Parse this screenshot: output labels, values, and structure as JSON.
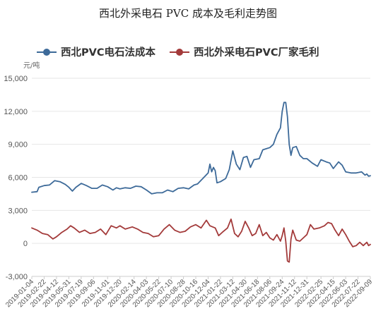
{
  "chart_data": {
    "type": "line",
    "title": "西北外采电石 PVC 成本及毛利走势图",
    "y_unit": "元/吨",
    "ylim": [
      -3000,
      15000
    ],
    "y_ticks": [
      "-3,000",
      "0",
      "3,000",
      "6,000",
      "9,000",
      "12,000",
      "15,000"
    ],
    "y_tick_values": [
      -3000,
      0,
      3000,
      6000,
      9000,
      12000,
      15000
    ],
    "grid": true,
    "legend_position": "top",
    "x_start": "2019-01-04",
    "x_end": "2022-09-09",
    "x_ticks": [
      "2019-01-04",
      "2019-02-22",
      "2019-04-12",
      "2019-05-31",
      "2019-07-19",
      "2019-09-06",
      "2019-11-01",
      "2019-12-20",
      "2020-02-14",
      "2020-04-03",
      "2020-05-22",
      "2020-07-10",
      "2020-08-28",
      "2020-10-16",
      "2020-12-04",
      "2021-01-22",
      "2021-03-12",
      "2021-04-30",
      "2021-06-18",
      "2021-08-06",
      "2021-09-24",
      "2021-11-12",
      "2021-12-31",
      "2022-02-25",
      "2022-04-15",
      "2022-06-03",
      "2022-07-22",
      "2022-09-09"
    ],
    "series": [
      {
        "name": "西北PVC电石法成本",
        "color": "#3d6a99",
        "points": [
          [
            "2019-01-04",
            4650
          ],
          [
            "2019-01-25",
            4700
          ],
          [
            "2019-02-01",
            5100
          ],
          [
            "2019-02-22",
            5250
          ],
          [
            "2019-03-15",
            5300
          ],
          [
            "2019-04-05",
            5700
          ],
          [
            "2019-04-26",
            5600
          ],
          [
            "2019-05-17",
            5350
          ],
          [
            "2019-05-31",
            5100
          ],
          [
            "2019-06-14",
            4750
          ],
          [
            "2019-06-28",
            5100
          ],
          [
            "2019-07-19",
            5450
          ],
          [
            "2019-08-09",
            5250
          ],
          [
            "2019-08-30",
            5000
          ],
          [
            "2019-09-20",
            5000
          ],
          [
            "2019-10-11",
            5300
          ],
          [
            "2019-11-01",
            5150
          ],
          [
            "2019-11-22",
            4850
          ],
          [
            "2019-12-06",
            5050
          ],
          [
            "2019-12-20",
            4950
          ],
          [
            "2020-01-10",
            5050
          ],
          [
            "2020-01-31",
            5000
          ],
          [
            "2020-02-21",
            5200
          ],
          [
            "2020-03-13",
            5150
          ],
          [
            "2020-04-03",
            4850
          ],
          [
            "2020-04-24",
            4500
          ],
          [
            "2020-05-15",
            4600
          ],
          [
            "2020-06-05",
            4600
          ],
          [
            "2020-06-26",
            4850
          ],
          [
            "2020-07-17",
            4700
          ],
          [
            "2020-08-07",
            5000
          ],
          [
            "2020-08-28",
            5050
          ],
          [
            "2020-09-18",
            4950
          ],
          [
            "2020-10-09",
            5300
          ],
          [
            "2020-10-23",
            5400
          ],
          [
            "2020-11-13",
            5900
          ],
          [
            "2020-12-04",
            6400
          ],
          [
            "2020-12-11",
            7200
          ],
          [
            "2020-12-18",
            6500
          ],
          [
            "2020-12-25",
            6900
          ],
          [
            "2021-01-01",
            6600
          ],
          [
            "2021-01-08",
            5500
          ],
          [
            "2021-01-22",
            5600
          ],
          [
            "2021-02-12",
            5900
          ],
          [
            "2021-02-26",
            6700
          ],
          [
            "2021-03-12",
            8400
          ],
          [
            "2021-03-26",
            7200
          ],
          [
            "2021-04-09",
            6700
          ],
          [
            "2021-04-23",
            7800
          ],
          [
            "2021-05-07",
            7900
          ],
          [
            "2021-05-21",
            6900
          ],
          [
            "2021-06-04",
            7600
          ],
          [
            "2021-06-25",
            7700
          ],
          [
            "2021-07-09",
            8500
          ],
          [
            "2021-07-23",
            8600
          ],
          [
            "2021-08-06",
            8700
          ],
          [
            "2021-08-20",
            9000
          ],
          [
            "2021-09-03",
            9900
          ],
          [
            "2021-09-17",
            10500
          ],
          [
            "2021-09-24",
            12000
          ],
          [
            "2021-10-01",
            12800
          ],
          [
            "2021-10-08",
            12800
          ],
          [
            "2021-10-15",
            11500
          ],
          [
            "2021-10-22",
            9000
          ],
          [
            "2021-10-29",
            8000
          ],
          [
            "2021-11-05",
            8700
          ],
          [
            "2021-11-19",
            8800
          ],
          [
            "2021-12-03",
            8000
          ],
          [
            "2021-12-17",
            7700
          ],
          [
            "2021-12-31",
            7700
          ],
          [
            "2022-01-21",
            7300
          ],
          [
            "2022-02-11",
            7000
          ],
          [
            "2022-02-25",
            7600
          ],
          [
            "2022-03-18",
            7400
          ],
          [
            "2022-04-01",
            7300
          ],
          [
            "2022-04-15",
            6800
          ],
          [
            "2022-05-06",
            7400
          ],
          [
            "2022-05-20",
            7100
          ],
          [
            "2022-06-03",
            6500
          ],
          [
            "2022-06-24",
            6400
          ],
          [
            "2022-07-15",
            6400
          ],
          [
            "2022-08-05",
            6500
          ],
          [
            "2022-08-19",
            6200
          ],
          [
            "2022-08-26",
            6300
          ],
          [
            "2022-09-02",
            6100
          ],
          [
            "2022-09-09",
            6150
          ]
        ]
      },
      {
        "name": "西北外采电石PVC厂家毛利",
        "color": "#a33a3a",
        "points": [
          [
            "2019-01-04",
            1400
          ],
          [
            "2019-01-25",
            1200
          ],
          [
            "2019-02-15",
            900
          ],
          [
            "2019-03-08",
            800
          ],
          [
            "2019-03-29",
            400
          ],
          [
            "2019-04-12",
            600
          ],
          [
            "2019-05-03",
            1000
          ],
          [
            "2019-05-24",
            1300
          ],
          [
            "2019-06-07",
            1600
          ],
          [
            "2019-06-21",
            1400
          ],
          [
            "2019-07-12",
            1000
          ],
          [
            "2019-08-02",
            1200
          ],
          [
            "2019-08-23",
            900
          ],
          [
            "2019-09-13",
            1000
          ],
          [
            "2019-10-04",
            1300
          ],
          [
            "2019-10-25",
            800
          ],
          [
            "2019-11-15",
            1600
          ],
          [
            "2019-12-06",
            1400
          ],
          [
            "2019-12-20",
            1600
          ],
          [
            "2020-01-10",
            1300
          ],
          [
            "2020-02-07",
            1500
          ],
          [
            "2020-02-28",
            1300
          ],
          [
            "2020-03-20",
            1000
          ],
          [
            "2020-04-10",
            900
          ],
          [
            "2020-05-01",
            600
          ],
          [
            "2020-05-22",
            700
          ],
          [
            "2020-06-12",
            1300
          ],
          [
            "2020-07-03",
            1700
          ],
          [
            "2020-07-24",
            1200
          ],
          [
            "2020-08-14",
            1000
          ],
          [
            "2020-09-04",
            1100
          ],
          [
            "2020-09-25",
            1500
          ],
          [
            "2020-10-16",
            1700
          ],
          [
            "2020-11-06",
            1400
          ],
          [
            "2020-11-27",
            2100
          ],
          [
            "2020-12-11",
            1600
          ],
          [
            "2021-01-01",
            1400
          ],
          [
            "2021-01-15",
            700
          ],
          [
            "2021-01-29",
            1000
          ],
          [
            "2021-02-19",
            1400
          ],
          [
            "2021-03-05",
            2200
          ],
          [
            "2021-03-19",
            900
          ],
          [
            "2021-04-02",
            600
          ],
          [
            "2021-04-16",
            1100
          ],
          [
            "2021-04-30",
            2000
          ],
          [
            "2021-05-14",
            1400
          ],
          [
            "2021-05-28",
            700
          ],
          [
            "2021-06-11",
            900
          ],
          [
            "2021-06-25",
            1700
          ],
          [
            "2021-07-09",
            700
          ],
          [
            "2021-07-23",
            1000
          ],
          [
            "2021-08-06",
            500
          ],
          [
            "2021-08-20",
            300
          ],
          [
            "2021-09-03",
            800
          ],
          [
            "2021-09-17",
            200
          ],
          [
            "2021-09-24",
            700
          ],
          [
            "2021-10-01",
            1400
          ],
          [
            "2021-10-08",
            200
          ],
          [
            "2021-10-15",
            -1600
          ],
          [
            "2021-10-22",
            -1700
          ],
          [
            "2021-10-29",
            400
          ],
          [
            "2021-11-05",
            1200
          ],
          [
            "2021-11-19",
            300
          ],
          [
            "2021-12-03",
            200
          ],
          [
            "2021-12-17",
            500
          ],
          [
            "2021-12-31",
            800
          ],
          [
            "2022-01-14",
            1700
          ],
          [
            "2022-01-28",
            1300
          ],
          [
            "2022-02-18",
            1400
          ],
          [
            "2022-03-11",
            1600
          ],
          [
            "2022-03-25",
            1900
          ],
          [
            "2022-04-08",
            1800
          ],
          [
            "2022-04-22",
            1200
          ],
          [
            "2022-05-06",
            700
          ],
          [
            "2022-05-20",
            1300
          ],
          [
            "2022-06-03",
            800
          ],
          [
            "2022-06-17",
            200
          ],
          [
            "2022-07-01",
            -300
          ],
          [
            "2022-07-15",
            -200
          ],
          [
            "2022-07-29",
            100
          ],
          [
            "2022-08-12",
            -200
          ],
          [
            "2022-08-26",
            100
          ],
          [
            "2022-09-02",
            -200
          ],
          [
            "2022-09-09",
            -100
          ]
        ]
      }
    ]
  }
}
